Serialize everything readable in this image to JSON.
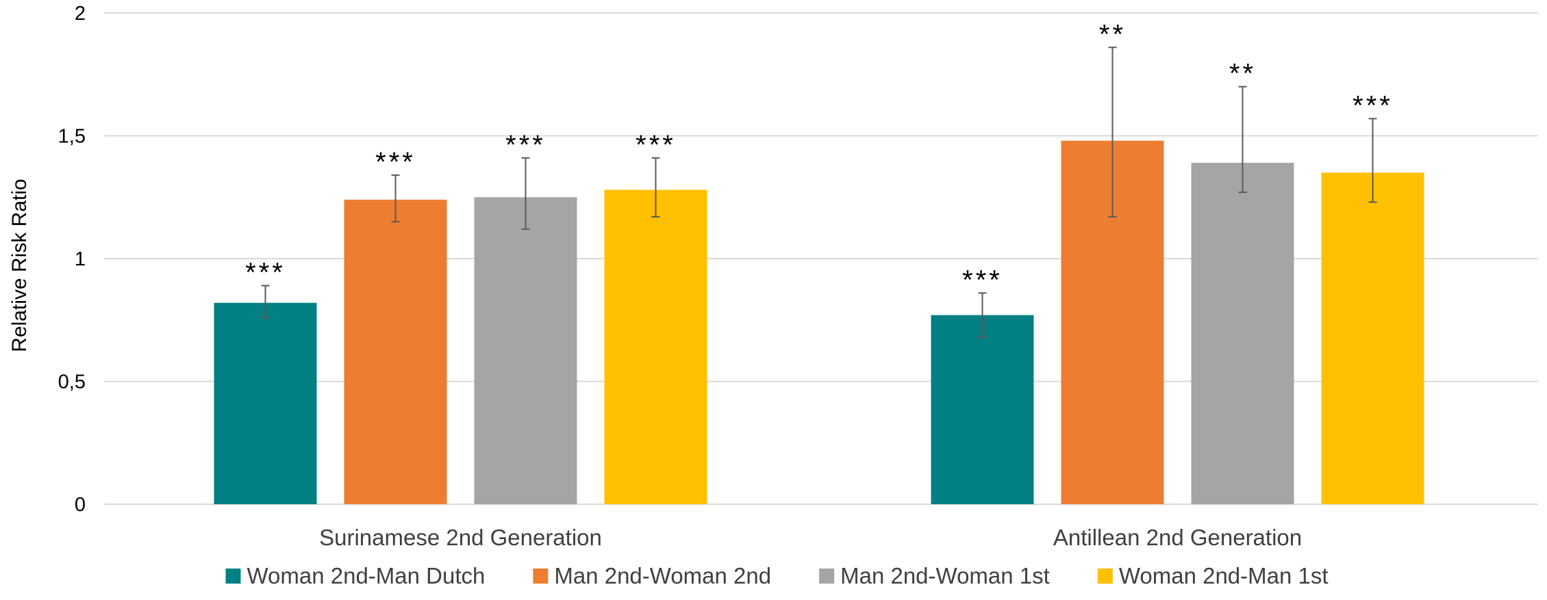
{
  "chart_data": {
    "type": "bar",
    "title": "",
    "xlabel": "",
    "ylabel": "Relative Risk Ratio",
    "ylim": [
      0,
      2
    ],
    "yticks": [
      0,
      0.5,
      1,
      1.5,
      2
    ],
    "ytick_labels": [
      "0",
      "0,5",
      "1",
      "1,5",
      "2"
    ],
    "grid": true,
    "legend_position": "bottom",
    "categories": [
      "Surinamese 2nd Generation",
      "Antillean 2nd Generation"
    ],
    "series": [
      {
        "name": "Woman 2nd-Man Dutch",
        "color": "#038083",
        "values": [
          0.82,
          0.77
        ],
        "err_low": [
          0.76,
          0.68
        ],
        "err_high": [
          0.89,
          0.86
        ],
        "significance": [
          "***",
          "***"
        ]
      },
      {
        "name": "Man 2nd-Woman 2nd",
        "color": "#ED7D31",
        "values": [
          1.24,
          1.48
        ],
        "err_low": [
          1.15,
          1.17
        ],
        "err_high": [
          1.34,
          1.86
        ],
        "significance": [
          "***",
          "**"
        ]
      },
      {
        "name": "Man 2nd-Woman 1st",
        "color": "#A5A5A5",
        "values": [
          1.25,
          1.39
        ],
        "err_low": [
          1.12,
          1.27
        ],
        "err_high": [
          1.41,
          1.7
        ],
        "significance": [
          "***",
          "**"
        ]
      },
      {
        "name": "Woman 2nd-Man 1st",
        "color": "#FFC000",
        "values": [
          1.28,
          1.35
        ],
        "err_low": [
          1.17,
          1.23
        ],
        "err_high": [
          1.41,
          1.57
        ],
        "significance": [
          "***",
          "***"
        ]
      }
    ]
  }
}
